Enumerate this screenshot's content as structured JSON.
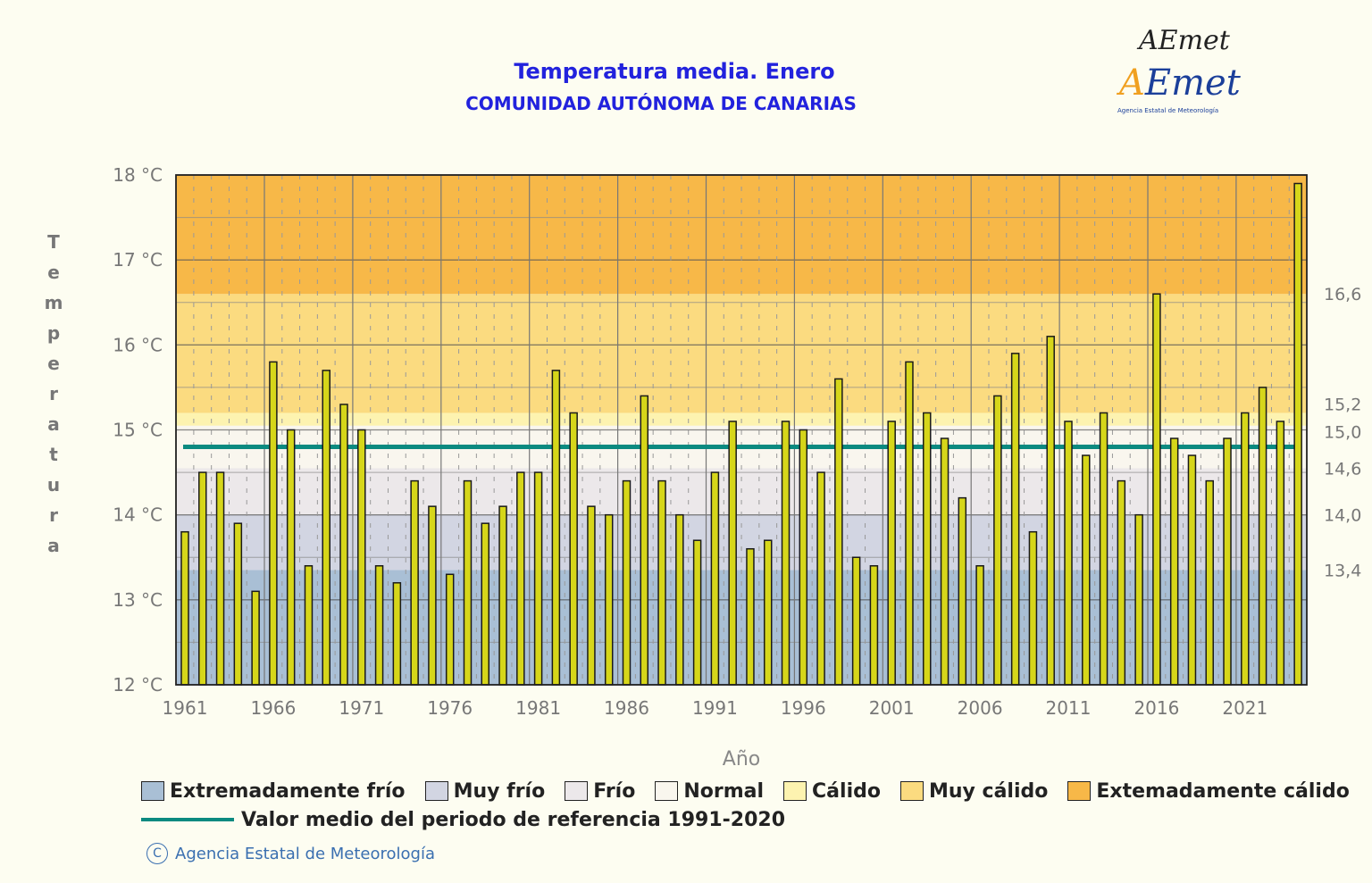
{
  "logo": {
    "text_top": "AEmet",
    "text_main": "AEmet",
    "tagline": "Agencia Estatal de Meteorología"
  },
  "colors": {
    "background": "#fdfdf1",
    "bar_fill": "#d6d61a",
    "mean_line": "#0b8a80",
    "title": "#2222dd"
  },
  "chart_data": {
    "type": "bar",
    "title": "Temperatura media. Enero",
    "subtitle": "COMUNIDAD AUTÓNOMA DE CANARIAS",
    "xlabel": "Año",
    "ylabel": "Temperatura",
    "ylim": [
      12,
      18
    ],
    "yticks": [
      "12 °C",
      "13 °C",
      "14 °C",
      "15 °C",
      "16 °C",
      "17 °C",
      "18 °C"
    ],
    "ytick_values": [
      12,
      13,
      14,
      15,
      16,
      17,
      18
    ],
    "xticks": [
      "1961",
      "1966",
      "1971",
      "1976",
      "1981",
      "1986",
      "1991",
      "1996",
      "2001",
      "2006",
      "2011",
      "2016",
      "2021"
    ],
    "grid": true,
    "categories": [
      1961,
      1962,
      1963,
      1964,
      1965,
      1966,
      1967,
      1968,
      1969,
      1970,
      1971,
      1972,
      1973,
      1974,
      1975,
      1976,
      1977,
      1978,
      1979,
      1980,
      1981,
      1982,
      1983,
      1984,
      1985,
      1986,
      1987,
      1988,
      1989,
      1990,
      1991,
      1992,
      1993,
      1994,
      1995,
      1996,
      1997,
      1998,
      1999,
      2000,
      2001,
      2002,
      2003,
      2004,
      2005,
      2006,
      2007,
      2008,
      2009,
      2010,
      2011,
      2012,
      2013,
      2014,
      2015,
      2016,
      2017,
      2018,
      2019,
      2020,
      2021,
      2022,
      2023,
      2024
    ],
    "values": [
      13.8,
      14.5,
      14.5,
      13.9,
      13.1,
      15.8,
      15.0,
      13.4,
      15.7,
      15.3,
      15.0,
      13.4,
      13.2,
      14.4,
      14.1,
      13.3,
      14.4,
      13.9,
      14.1,
      14.5,
      14.5,
      15.7,
      15.2,
      14.1,
      14.0,
      14.4,
      15.4,
      14.4,
      14.0,
      13.7,
      14.5,
      15.1,
      13.6,
      13.7,
      15.1,
      15.0,
      14.5,
      15.6,
      13.5,
      13.4,
      15.1,
      15.8,
      15.2,
      14.9,
      14.2,
      13.4,
      15.4,
      15.9,
      13.8,
      16.1,
      15.1,
      14.7,
      15.2,
      14.4,
      14.0,
      16.6,
      14.9,
      14.7,
      14.4,
      14.9,
      15.2,
      15.5,
      15.1,
      17.9
    ],
    "reference_mean": 14.8,
    "thresholds": [
      {
        "label": "16,6",
        "value": 16.6
      },
      {
        "label": "15,2",
        "value": 15.2
      },
      {
        "label": "15,0",
        "value": 15.0
      },
      {
        "label": "14,6",
        "value": 14.55
      },
      {
        "label": "14,0",
        "value": 14.0
      },
      {
        "label": "13,4",
        "value": 13.35
      }
    ],
    "bands": [
      {
        "label": "Extremadamente frío",
        "from": 12,
        "to": 13.35,
        "color": "#a9bfd5"
      },
      {
        "label": "Muy frío",
        "from": 13.35,
        "to": 14.0,
        "color": "#d2d5e2"
      },
      {
        "label": "Frío",
        "from": 14.0,
        "to": 14.55,
        "color": "#ece8ea"
      },
      {
        "label": "Normal",
        "from": 14.55,
        "to": 15.05,
        "color": "#f9f6ee"
      },
      {
        "label": "Cálido",
        "from": 15.05,
        "to": 15.2,
        "color": "#fdf3b0"
      },
      {
        "label": "Muy cálido",
        "from": 15.2,
        "to": 16.6,
        "color": "#fbdb80"
      },
      {
        "label": "Extemadamente cálido",
        "from": 16.6,
        "to": 18,
        "color": "#f7b848"
      }
    ],
    "legend_mean_label": "Valor medio del periodo de referencia 1991-2020"
  },
  "footer": {
    "copyright_symbol": "C",
    "agency": "Agencia Estatal de Meteorología"
  }
}
